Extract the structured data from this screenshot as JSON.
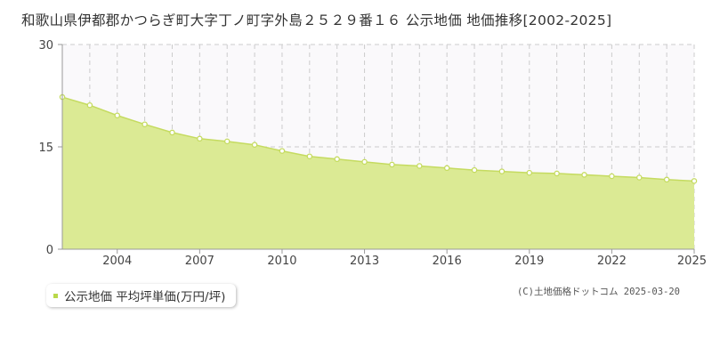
{
  "chart_data": {
    "type": "area",
    "title": "和歌山県伊都郡かつらぎ町大字丁ノ町字外島２５２９番１６ 公示地価 地価推移[2002-2025]",
    "xlabel": "",
    "ylabel": "",
    "x": [
      2002,
      2003,
      2004,
      2005,
      2006,
      2007,
      2008,
      2009,
      2010,
      2011,
      2012,
      2013,
      2014,
      2015,
      2016,
      2017,
      2018,
      2019,
      2020,
      2021,
      2022,
      2023,
      2024,
      2025
    ],
    "series": [
      {
        "name": "公示地価 平均坪単価(万円/坪)",
        "values": [
          22.3,
          21.1,
          19.6,
          18.3,
          17.1,
          16.2,
          15.8,
          15.3,
          14.4,
          13.6,
          13.2,
          12.8,
          12.4,
          12.2,
          11.9,
          11.6,
          11.4,
          11.2,
          11.1,
          10.9,
          10.7,
          10.5,
          10.2,
          10.0
        ]
      }
    ],
    "xlim": [
      2002,
      2025
    ],
    "ylim": [
      0,
      30
    ],
    "yticks": [
      0,
      15,
      30
    ],
    "xticks": [
      2004,
      2007,
      2010,
      2013,
      2016,
      2019,
      2022,
      2025
    ],
    "grid": true,
    "legend_position": "bottom-left",
    "colors": {
      "area_fill": "#dbea94",
      "line": "#c5db60",
      "point_fill": "#ffffff",
      "grid": "#cccccc",
      "plot_background": "#faf9fb",
      "legend_swatch": "#b9d84a"
    }
  },
  "credit": "(C)土地価格ドットコム 2025-03-20"
}
